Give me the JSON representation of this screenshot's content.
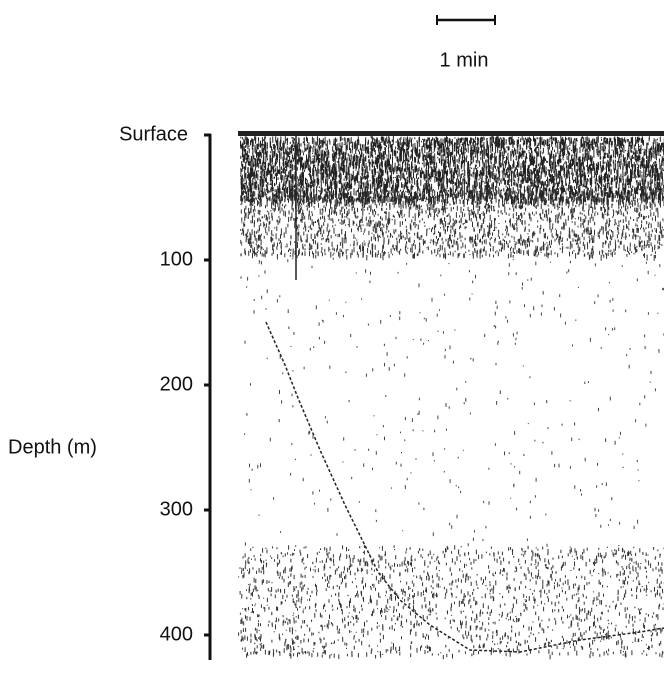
{
  "chart_data": {
    "type": "echogram",
    "scale_bar_label": "1 min",
    "y_label": "Depth (m)",
    "ylim": [
      0,
      420
    ],
    "yticks": [
      {
        "value": 0,
        "label": "Surface"
      },
      100,
      200,
      300,
      400
    ]
  }
}
